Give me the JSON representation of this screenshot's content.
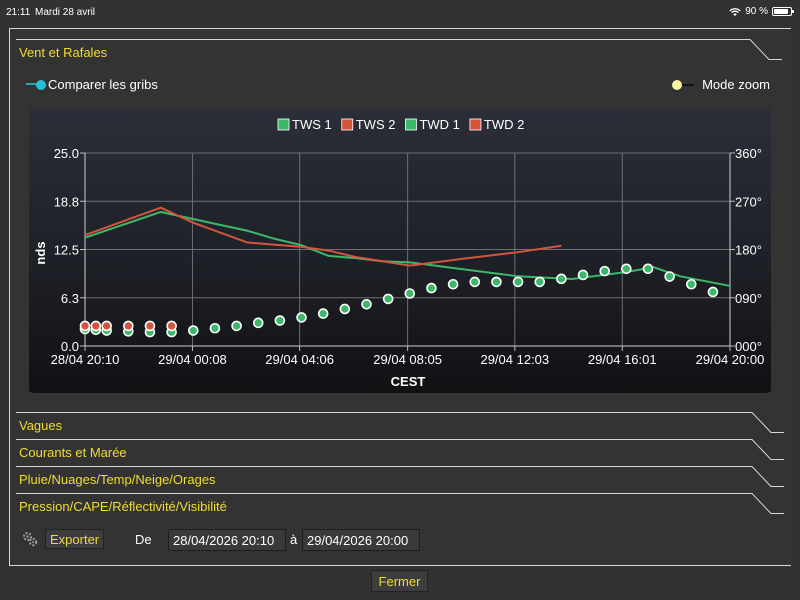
{
  "status": {
    "time": "21:11",
    "date": "Mardi 28 avril",
    "battery": "90 %",
    "battery_level": 0.9
  },
  "sections": [
    {
      "label": "Vent et Rafales",
      "expanded": true
    },
    {
      "label": "Vagues",
      "expanded": false
    },
    {
      "label": "Courants et Marée",
      "expanded": false
    },
    {
      "label": "Pluie/Nuages/Temp/Neige/Orages",
      "expanded": false
    },
    {
      "label": "Pression/CAPE/Réflectivité/Visibilité",
      "expanded": false
    }
  ],
  "toggles": {
    "compare": {
      "label": "Comparer les gribs",
      "on": true
    },
    "zoom": {
      "label": "Mode zoom",
      "on": false
    }
  },
  "chart_data": {
    "type": "line",
    "legend_position": "top",
    "grid": true,
    "xlabel": "CEST",
    "ylabel": "nds",
    "ylim": [
      0,
      25
    ],
    "y2lim": [
      0,
      360
    ],
    "yticks": [
      "0.0",
      "6.3",
      "12.5",
      "18.8",
      "25.0"
    ],
    "y2ticks": [
      "000°",
      "090°",
      "180°",
      "270°",
      "360°"
    ],
    "xlim": [
      0,
      23.83
    ],
    "xticks": [
      {
        "x": 0,
        "label": "28/04 20:10"
      },
      {
        "x": 3.97,
        "label": "29/04 00:08"
      },
      {
        "x": 7.93,
        "label": "29/04 04:06"
      },
      {
        "x": 11.92,
        "label": "29/04 08:05"
      },
      {
        "x": 15.88,
        "label": "29/04 12:03"
      },
      {
        "x": 19.85,
        "label": "29/04 16:01"
      },
      {
        "x": 23.83,
        "label": "29/04 20:00"
      }
    ],
    "series": [
      {
        "name": "TWS 1",
        "color": "#3cb86a",
        "style": "points",
        "axis": "left",
        "x": [
          0,
          0.4,
          0.8,
          1.6,
          2.4,
          3.2,
          4.0,
          4.8,
          5.6,
          6.4,
          7.2,
          8.0,
          8.8,
          9.6,
          10.4,
          11.2,
          12.0,
          12.8,
          13.6,
          14.4,
          15.2,
          16.0,
          16.8,
          17.6,
          18.4,
          19.2,
          20.0,
          20.8,
          21.6,
          22.4,
          23.2
        ],
        "y": [
          2.2,
          2.1,
          2.0,
          1.9,
          1.8,
          1.8,
          2.0,
          2.3,
          2.6,
          3.0,
          3.3,
          3.7,
          4.2,
          4.8,
          5.4,
          6.1,
          6.8,
          7.5,
          8.0,
          8.3,
          8.3,
          8.3,
          8.3,
          8.7,
          9.2,
          9.7,
          10.0,
          10.0,
          9.0,
          8.0,
          7.0
        ]
      },
      {
        "name": "TWS 2",
        "color": "#d2553c",
        "style": "points",
        "axis": "left",
        "x": [
          0,
          0.4,
          0.8,
          1.6,
          2.4,
          3.2
        ],
        "y": [
          2.6,
          2.6,
          2.6,
          2.6,
          2.6,
          2.6
        ]
      },
      {
        "name": "TWD 1",
        "color": "#3cb86a",
        "style": "line",
        "axis": "right",
        "x": [
          0,
          2.8,
          4.8,
          6.0,
          7.0,
          8.0,
          9.0,
          10.0,
          11.0,
          12.0,
          14.0,
          16.0,
          18.0,
          20.0,
          21.0,
          22.0,
          23.83
        ],
        "y": [
          202,
          250,
          228,
          215,
          200,
          188,
          168,
          164,
          158,
          156,
          143,
          130,
          125,
          138,
          147,
          130,
          112
        ]
      },
      {
        "name": "TWD 2",
        "color": "#d2553c",
        "style": "line",
        "axis": "right",
        "x": [
          0,
          2.8,
          4.0,
          6.0,
          8.0,
          9.0,
          10.0,
          11.0,
          12.0,
          14.0,
          16.0,
          17.6
        ],
        "y": [
          207,
          258,
          230,
          193,
          185,
          178,
          166,
          158,
          150,
          163,
          175,
          187
        ]
      }
    ]
  },
  "export": {
    "button": "Exporter",
    "from_label": "De",
    "from_value": "28/04/2026 20:10",
    "to_label": "à",
    "to_value": "29/04/2026 20:00"
  },
  "close_button": "Fermer"
}
